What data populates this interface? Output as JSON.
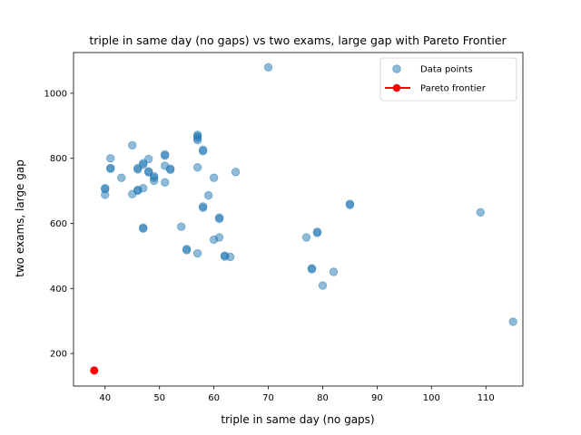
{
  "chart_data": {
    "type": "scatter",
    "title": "triple in same day (no gaps) vs two exams, large gap with Pareto Frontier",
    "xlabel": "triple in same day (no gaps)",
    "ylabel": "two exams, large gap",
    "xlim": [
      34.2,
      116.8
    ],
    "ylim": [
      100,
      1125
    ],
    "xticks": [
      40,
      50,
      60,
      70,
      80,
      90,
      100,
      110
    ],
    "yticks": [
      200,
      400,
      600,
      800,
      1000
    ],
    "grid": false,
    "legend_position": "top-right",
    "colors": {
      "data": "#1f77b4",
      "pareto": "#ff0000"
    },
    "series": [
      {
        "name": "Data points",
        "points": [
          [
            40,
            708
          ],
          [
            40,
            705
          ],
          [
            40,
            688
          ],
          [
            41,
            800
          ],
          [
            41,
            770
          ],
          [
            41,
            768
          ],
          [
            43,
            740
          ],
          [
            45,
            840
          ],
          [
            45,
            690
          ],
          [
            46,
            770
          ],
          [
            46,
            766
          ],
          [
            46,
            703
          ],
          [
            46,
            700
          ],
          [
            47,
            785
          ],
          [
            47,
            780
          ],
          [
            47,
            708
          ],
          [
            47,
            587
          ],
          [
            47,
            584
          ],
          [
            48,
            798
          ],
          [
            48,
            760
          ],
          [
            48,
            757
          ],
          [
            49,
            745
          ],
          [
            49,
            740
          ],
          [
            49,
            731
          ],
          [
            51,
            812
          ],
          [
            51,
            808
          ],
          [
            51,
            777
          ],
          [
            51,
            726
          ],
          [
            52,
            768
          ],
          [
            52,
            765
          ],
          [
            54,
            590
          ],
          [
            55,
            521
          ],
          [
            55,
            518
          ],
          [
            57,
            872
          ],
          [
            57,
            868
          ],
          [
            57,
            862
          ],
          [
            57,
            856
          ],
          [
            57,
            772
          ],
          [
            57,
            508
          ],
          [
            58,
            826
          ],
          [
            58,
            822
          ],
          [
            58,
            652
          ],
          [
            58,
            648
          ],
          [
            59,
            686
          ],
          [
            60,
            740
          ],
          [
            60,
            550
          ],
          [
            61,
            618
          ],
          [
            61,
            614
          ],
          [
            61,
            557
          ],
          [
            62,
            501
          ],
          [
            62,
            498
          ],
          [
            63,
            497
          ],
          [
            64,
            758
          ],
          [
            70,
            1080
          ],
          [
            77,
            557
          ],
          [
            78,
            462
          ],
          [
            78,
            459
          ],
          [
            79,
            574
          ],
          [
            79,
            571
          ],
          [
            80,
            409
          ],
          [
            82,
            451
          ],
          [
            85,
            660
          ],
          [
            85,
            657
          ],
          [
            109,
            634
          ],
          [
            115,
            298
          ]
        ]
      },
      {
        "name": "Pareto frontier",
        "points": [
          [
            38,
            148
          ]
        ]
      }
    ]
  }
}
